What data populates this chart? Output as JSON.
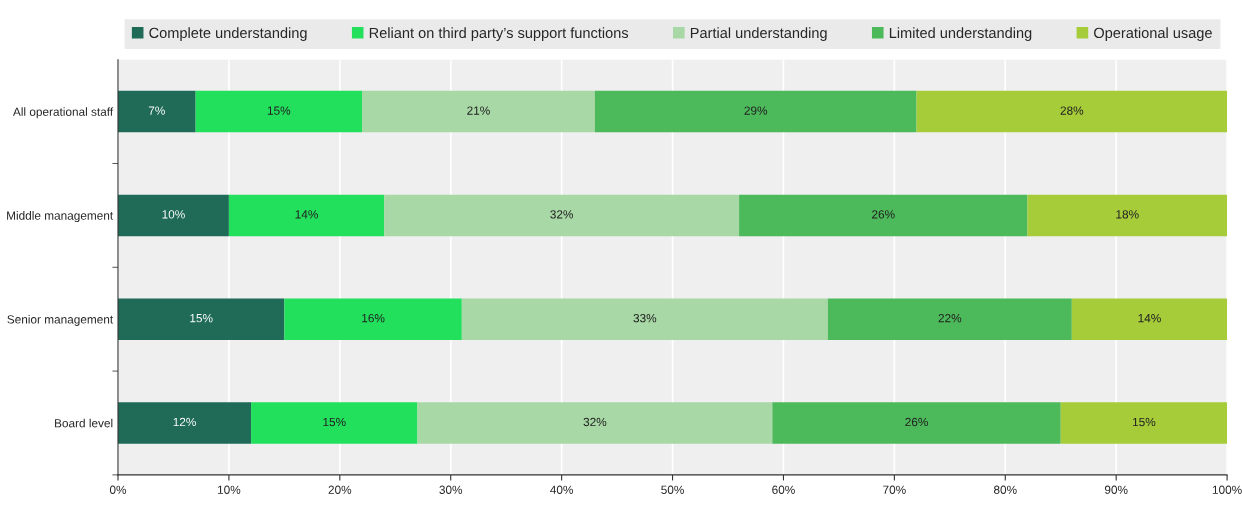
{
  "chart_data": {
    "type": "bar",
    "orientation": "horizontal",
    "stacked": true,
    "categories": [
      "All operational staff",
      "Middle management",
      "Senior management",
      "Board level"
    ],
    "series": [
      {
        "name": "Complete understanding",
        "color": "#1f6b57",
        "values": [
          7,
          10,
          15,
          12
        ],
        "value_labels": [
          "7%",
          "10%",
          "15%",
          "12%"
        ]
      },
      {
        "name": "Reliant on third party’s support functions",
        "color": "#22e05c",
        "values": [
          15,
          14,
          16,
          15
        ],
        "value_labels": [
          "15%",
          "14%",
          "16%",
          "15%"
        ]
      },
      {
        "name": "Partial understanding",
        "color": "#a8d8a5",
        "values": [
          21,
          32,
          33,
          32
        ],
        "value_labels": [
          "21%",
          "32%",
          "33%",
          "32%"
        ]
      },
      {
        "name": "Limited understanding",
        "color": "#4cb95a",
        "values": [
          29,
          26,
          22,
          26
        ],
        "value_labels": [
          "29%",
          "26%",
          "22%",
          "26%"
        ]
      },
      {
        "name": "Operational usage",
        "color": "#a6cc3a",
        "values": [
          28,
          18,
          14,
          15
        ],
        "value_labels": [
          "28%",
          "18%",
          "14%",
          "15%"
        ]
      }
    ],
    "xlim": [
      0,
      100
    ],
    "xticks": [
      {
        "value": 0,
        "label": "0%"
      },
      {
        "value": 10,
        "label": "10%"
      },
      {
        "value": 20,
        "label": "20%"
      },
      {
        "value": 30,
        "label": "30%"
      },
      {
        "value": 40,
        "label": "40%"
      },
      {
        "value": 50,
        "label": "50%"
      },
      {
        "value": 60,
        "label": "60%"
      },
      {
        "value": 70,
        "label": "70%"
      },
      {
        "value": 80,
        "label": "80%"
      },
      {
        "value": 90,
        "label": "90%"
      },
      {
        "value": 100,
        "label": "100%"
      }
    ],
    "grid": "x",
    "legend": "top"
  }
}
